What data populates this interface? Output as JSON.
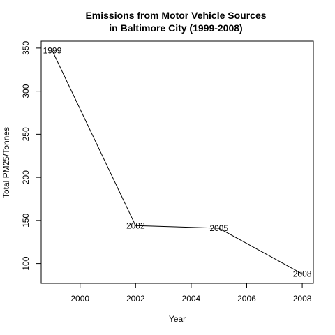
{
  "chart_data": {
    "type": "line",
    "title_line1": "Emissions from Motor Vehicle Sources",
    "title_line2": "in Baltimore City (1999-2008)",
    "xlabel": "Year",
    "ylabel": "Total PM25/Tonnes",
    "x": [
      1999,
      2002,
      2005,
      2008
    ],
    "values": [
      347,
      144,
      141,
      88
    ],
    "point_labels": [
      "1999",
      "2002",
      "2005",
      "2008"
    ],
    "xlim": [
      1998.6,
      2008.4
    ],
    "ylim": [
      77,
      358
    ],
    "xticks": [
      2000,
      2002,
      2004,
      2006,
      2008
    ],
    "yticks": [
      100,
      150,
      200,
      250,
      300,
      350
    ],
    "line_color": "#000000"
  }
}
